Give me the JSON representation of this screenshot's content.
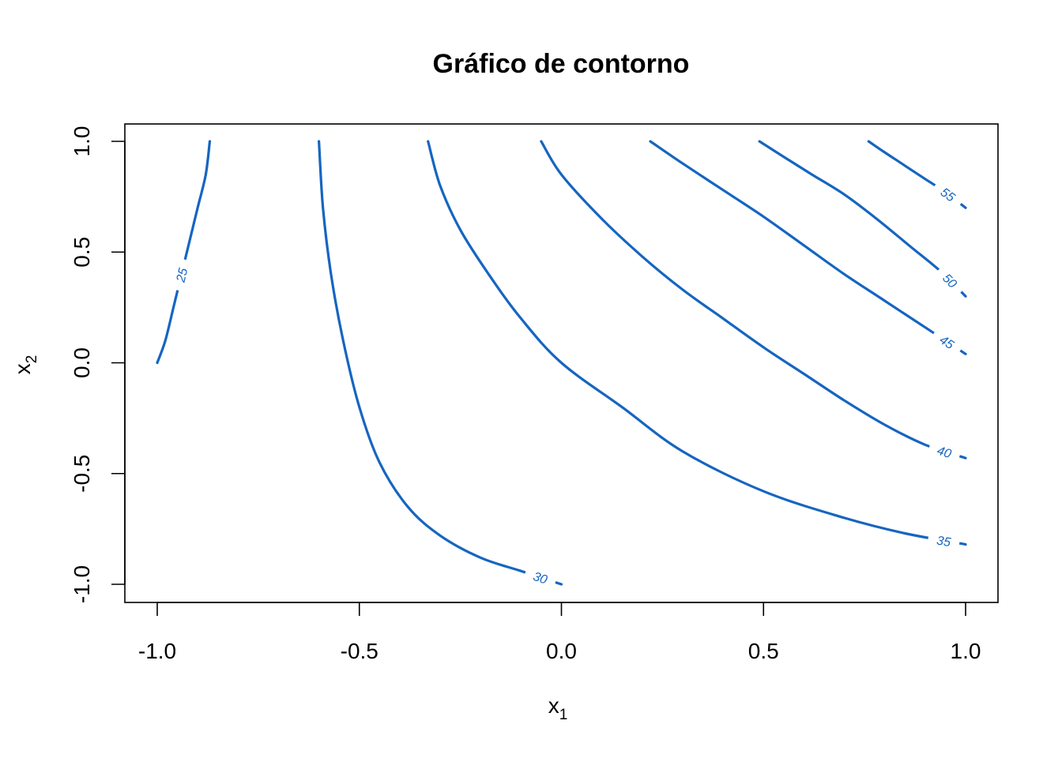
{
  "chart_data": {
    "type": "contour",
    "title": "Gráfico de contorno",
    "xlabel": {
      "main": "x",
      "sub": "1"
    },
    "ylabel": {
      "main": "x",
      "sub": "2"
    },
    "xlim": [
      -1.0,
      1.0
    ],
    "ylim": [
      -1.0,
      1.0
    ],
    "xticks": [
      -1.0,
      -0.5,
      0.0,
      0.5,
      1.0
    ],
    "yticks": [
      -1.0,
      -0.5,
      0.0,
      0.5,
      1.0
    ],
    "xtick_labels": [
      "-1.0",
      "-0.5",
      "0.0",
      "0.5",
      "1.0"
    ],
    "ytick_labels": [
      "-1.0",
      "-0.5",
      "0.0",
      "0.5",
      "1.0"
    ],
    "line_color": "#1565c0",
    "levels": [
      {
        "level": 25,
        "label": "25",
        "points": [
          [
            -0.87,
            1.0
          ],
          [
            -0.88,
            0.85
          ],
          [
            -0.9,
            0.7
          ],
          [
            -0.92,
            0.55
          ],
          [
            -0.94,
            0.4
          ],
          [
            -0.96,
            0.25
          ],
          [
            -0.98,
            0.1
          ],
          [
            -1.0,
            0.0
          ]
        ]
      },
      {
        "level": 30,
        "label": "30",
        "points": [
          [
            -0.6,
            1.0
          ],
          [
            -0.59,
            0.7
          ],
          [
            -0.57,
            0.4
          ],
          [
            -0.54,
            0.1
          ],
          [
            -0.5,
            -0.2
          ],
          [
            -0.45,
            -0.45
          ],
          [
            -0.38,
            -0.65
          ],
          [
            -0.3,
            -0.78
          ],
          [
            -0.2,
            -0.88
          ],
          [
            -0.1,
            -0.94
          ],
          [
            0.0,
            -1.0
          ]
        ]
      },
      {
        "level": 35,
        "label": "35",
        "points": [
          [
            -0.33,
            1.0
          ],
          [
            -0.3,
            0.8
          ],
          [
            -0.25,
            0.6
          ],
          [
            -0.18,
            0.4
          ],
          [
            -0.1,
            0.2
          ],
          [
            0.0,
            0.0
          ],
          [
            0.15,
            -0.2
          ],
          [
            0.3,
            -0.4
          ],
          [
            0.5,
            -0.58
          ],
          [
            0.7,
            -0.7
          ],
          [
            0.85,
            -0.77
          ],
          [
            1.0,
            -0.82
          ]
        ]
      },
      {
        "level": 40,
        "label": "40",
        "points": [
          [
            -0.05,
            1.0
          ],
          [
            0.0,
            0.85
          ],
          [
            0.1,
            0.65
          ],
          [
            0.2,
            0.48
          ],
          [
            0.3,
            0.33
          ],
          [
            0.4,
            0.2
          ],
          [
            0.5,
            0.07
          ],
          [
            0.6,
            -0.05
          ],
          [
            0.7,
            -0.17
          ],
          [
            0.8,
            -0.28
          ],
          [
            0.9,
            -0.37
          ],
          [
            1.0,
            -0.43
          ]
        ]
      },
      {
        "level": 45,
        "label": "45",
        "points": [
          [
            0.22,
            1.0
          ],
          [
            0.3,
            0.9
          ],
          [
            0.4,
            0.78
          ],
          [
            0.5,
            0.66
          ],
          [
            0.6,
            0.53
          ],
          [
            0.7,
            0.4
          ],
          [
            0.8,
            0.28
          ],
          [
            0.9,
            0.16
          ],
          [
            1.0,
            0.04
          ]
        ]
      },
      {
        "level": 50,
        "label": "50",
        "points": [
          [
            0.49,
            1.0
          ],
          [
            0.55,
            0.93
          ],
          [
            0.62,
            0.85
          ],
          [
            0.7,
            0.76
          ],
          [
            0.78,
            0.65
          ],
          [
            0.86,
            0.53
          ],
          [
            0.94,
            0.41
          ],
          [
            1.0,
            0.3
          ]
        ]
      },
      {
        "level": 55,
        "label": "55",
        "points": [
          [
            0.76,
            1.0
          ],
          [
            0.8,
            0.95
          ],
          [
            0.85,
            0.89
          ],
          [
            0.9,
            0.83
          ],
          [
            0.95,
            0.77
          ],
          [
            1.0,
            0.7
          ]
        ]
      }
    ]
  }
}
